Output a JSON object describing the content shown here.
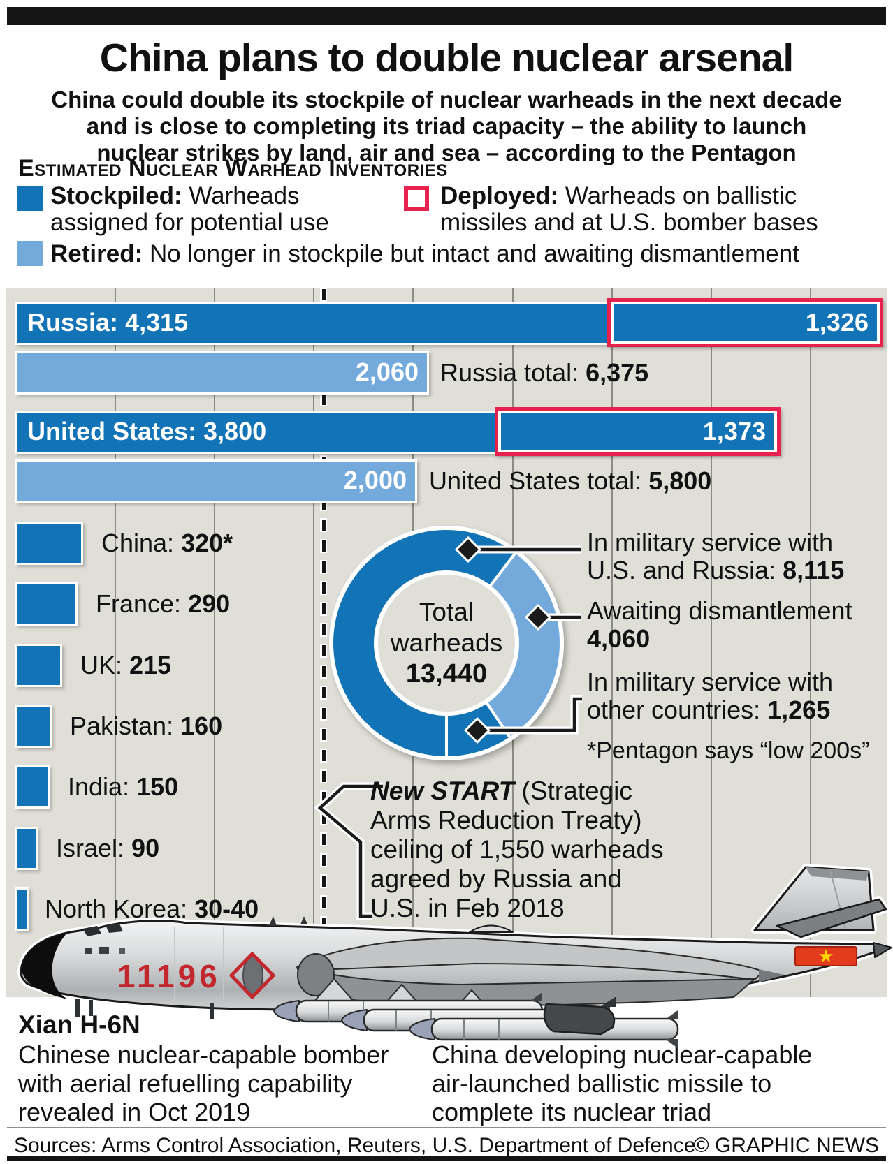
{
  "masthead": {
    "title": "China plans to double nuclear arsenal",
    "subtitle_lines": [
      "China could double its stockpile of nuclear warheads in the next decade",
      "and is close to completing its triad capacity – the ability to launch",
      "nuclear strikes by land, air and sea – according to the Pentagon"
    ]
  },
  "section_heading": "Estimated Nuclear Warhead Inventories",
  "legend": {
    "stockpiled": {
      "term": "Stockpiled:",
      "desc": " Warheads assigned for potential use"
    },
    "deployed": {
      "term": "Deployed:",
      "desc": " Warheads on ballistic missiles and at U.S. bomber bases"
    },
    "retired": {
      "term": "Retired:",
      "desc": " No longer in stockpile but intact and awaiting dismantlement"
    }
  },
  "chart_data": [
    {
      "id": "estimated_nuclear_warhead_inventories",
      "type": "bar",
      "orientation": "horizontal",
      "unit": "warheads",
      "axis": {
        "min": 0,
        "max": 4500,
        "gridline_interval": 500,
        "grid": true
      },
      "rows": [
        {
          "country": "Russia",
          "stockpiled": 4315,
          "deployed": 1326,
          "retired": 2060,
          "total": 6375,
          "bar_label": "Russia: 4,315",
          "deployed_label": "1,326",
          "retired_label": "2,060",
          "total_prefix": "Russia total: ",
          "total_value": "6,375"
        },
        {
          "country": "United States",
          "stockpiled": 3800,
          "deployed": 1373,
          "retired": 2000,
          "total": 5800,
          "bar_label": "United States: 3,800",
          "deployed_label": "1,373",
          "retired_label": "2,000",
          "total_prefix": "United States total: ",
          "total_value": "5,800"
        }
      ],
      "countries": [
        {
          "name": "China: ",
          "value": 320,
          "value_label": "320*"
        },
        {
          "name": "France: ",
          "value": 290,
          "value_label": "290"
        },
        {
          "name": "UK: ",
          "value": 215,
          "value_label": "215"
        },
        {
          "name": "Pakistan: ",
          "value": 160,
          "value_label": "160"
        },
        {
          "name": "India: ",
          "value": 150,
          "value_label": "150"
        },
        {
          "name": "Israel: ",
          "value": 90,
          "value_label": "90"
        },
        {
          "name": "North Korea: ",
          "value": 35,
          "value_label": "30-40"
        }
      ],
      "reference_line": {
        "label": "New START ceiling",
        "value": 1550
      }
    },
    {
      "id": "total_warheads",
      "type": "pie",
      "donut": true,
      "start_angle_deg": 180,
      "center_lines": [
        "Total",
        "warheads",
        "13,440"
      ],
      "total": 13440,
      "segments": [
        {
          "label": "In military service with U.S. and Russia",
          "value": 8115,
          "color_key": "dark"
        },
        {
          "label": "Awaiting dismantlement",
          "value": 4060,
          "color_key": "light"
        },
        {
          "label": "In military service with other countries",
          "value": 1265,
          "color_key": "dark"
        }
      ]
    }
  ],
  "callouts": [
    {
      "line1": "In military service with",
      "line2_prefix": "U.S. and Russia: ",
      "line2_bold": "8,115"
    },
    {
      "line1": "Awaiting dismantlement",
      "line2_prefix": "",
      "line2_bold": "4,060"
    },
    {
      "line1": "In military service with",
      "line2_prefix": "other countries: ",
      "line2_bold": "1,265"
    }
  ],
  "footnote": "*Pentagon says “low 200s”",
  "new_start": {
    "bold_italic": "New START",
    "first_line_rest": " (Strategic",
    "lines": [
      "Arms Reduction Treaty)",
      "ceiling of 1,550 warheads",
      "agreed by Russia and",
      "U.S. in Feb 2018"
    ]
  },
  "aircraft": {
    "name": "Xian H-6N",
    "tail_number": "11196",
    "caption_left": "Chinese nuclear-capable bomber with aerial refuelling capability revealed in Oct 2019",
    "caption_right": "China developing nuclear-capable air-launched ballistic missile to complete its nuclear triad"
  },
  "footer": {
    "sources": "Sources: Arms Control Association, Reuters, U.S. Department of Defence",
    "credit": "© GRAPHIC NEWS"
  },
  "colors": {
    "stockpiled": "#1273b6",
    "retired": "#74aadb",
    "deployed_outline": "#e8224f",
    "panel_bg": "#e0dfd7",
    "gridline": "#8c8c84",
    "aircraft_red": "#c1272d",
    "text": "#1a1a1a"
  }
}
